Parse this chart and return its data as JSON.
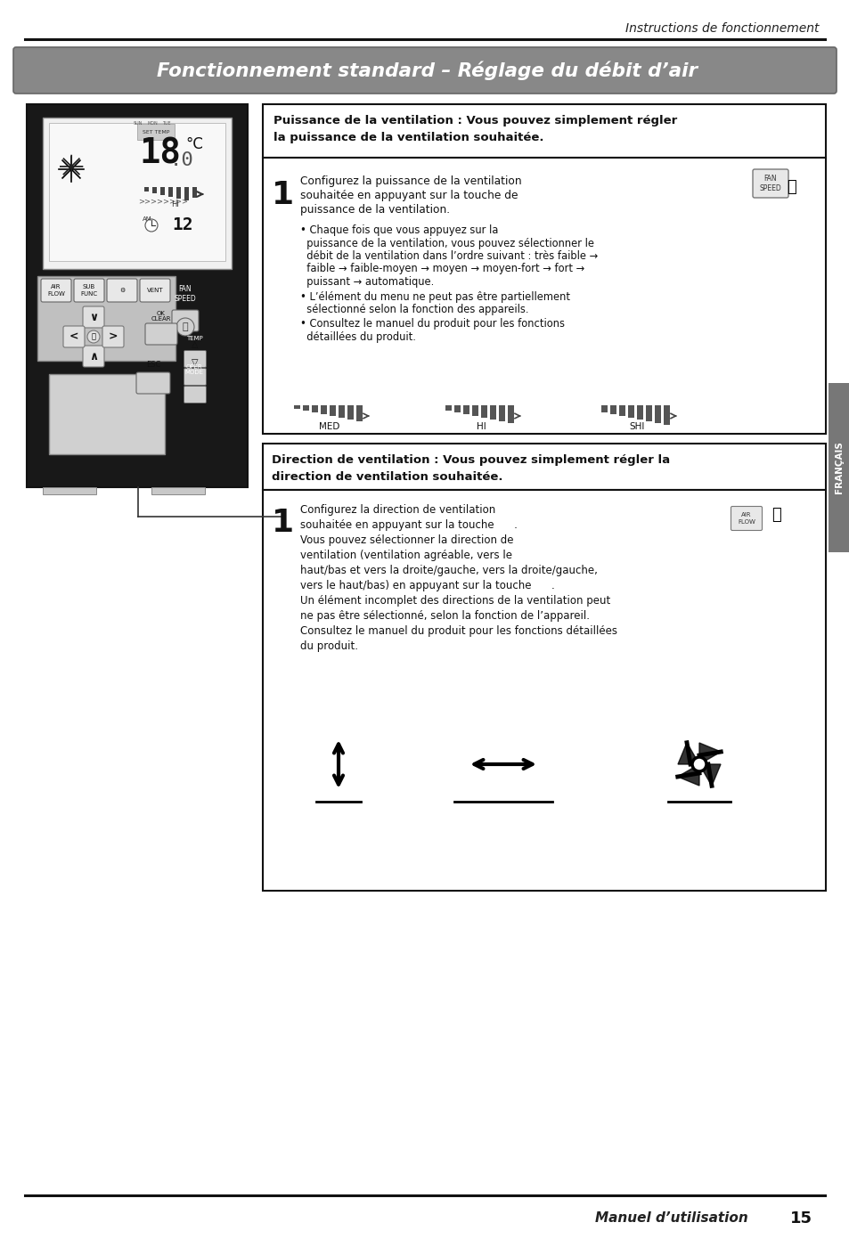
{
  "page_header": "Instructions de fonctionnement",
  "page_title": "Fonctionnement standard – Réglage du débit d’air",
  "page_footer_text": "Manuel d’utilisation",
  "page_footer_num": "15",
  "section1_header_line1": "Puissance de la ventilation : Vous pouvez simplement régler",
  "section1_header_line2": "la puissance de la ventilation souhaitée.",
  "section1_step1_body": "Configurez la puissance de la ventilation\nsouhaitée en appuyant sur la touche de\npuissance de la ventilation.",
  "section1_bullet1_line1": "• Chaque fois que vous appuyez sur la",
  "section1_bullet1_line2": "  puissance de la ventilation, vous pouvez sélectionner le",
  "section1_bullet1_line3": "  débit de la ventilation dans l’ordre suivant : très faible →",
  "section1_bullet1_line4": "  faible → faible-moyen → moyen → moyen-fort → fort →",
  "section1_bullet1_line5": "  puissant → automatique.",
  "section1_bullet2_line1": "• L’élément du menu ne peut pas être partiellement",
  "section1_bullet2_line2": "  sélectionné selon la fonction des appareils.",
  "section1_bullet3_line1": "• Consultez le manuel du produit pour les fonctions",
  "section1_bullet3_line2": "  détaillées du produit.",
  "section1_labels": [
    "MED",
    "HI",
    "SHI"
  ],
  "section2_header_line1": "Direction de ventilation : Vous pouvez simplement régler la",
  "section2_header_line2": "direction de ventilation souhaitée.",
  "section2_body_lines": [
    "Configurez la direction de ventilation",
    "souhaitée en appuyant sur la touche      .",
    "Vous pouvez sélectionner la direction de",
    "ventilation (ventilation agréable, vers le",
    "haut/bas et vers la droite/gauche, vers la droite/gauche,",
    "vers le haut/bas) en appuyant sur la touche      .",
    "Un élément incomplet des directions de la ventilation peut",
    "ne pas être sélectionné, selon la fonction de l’appareil.",
    "Consultez le manuel du produit pour les fonctions détaillées",
    "du produit."
  ],
  "bg_color": "#ffffff",
  "sidebar_color": "#777777"
}
